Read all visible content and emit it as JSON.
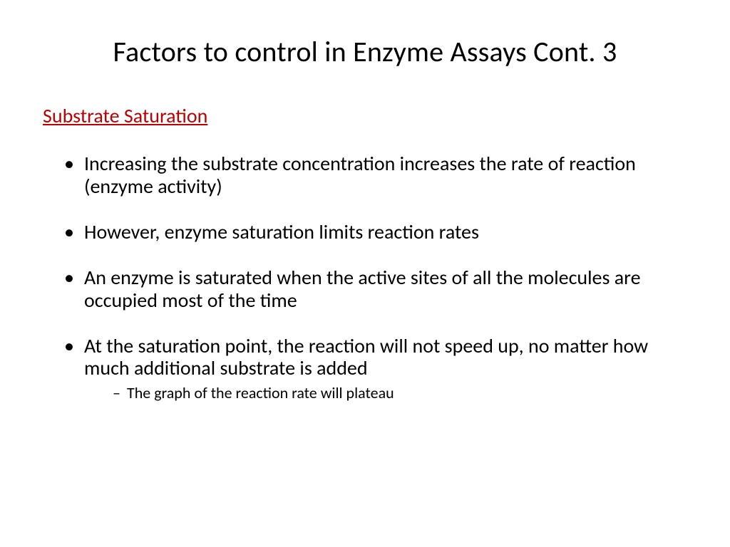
{
  "slide": {
    "title": "Factors to control in Enzyme Assays Cont. 3",
    "subheading": "Substrate Saturation",
    "bullets": [
      {
        "text": "Increasing the substrate concentration increases the rate of reaction (enzyme activity)"
      },
      {
        "text": "However, enzyme saturation limits reaction rates"
      },
      {
        "text": "An enzyme is saturated when the active sites of all the molecules are occupied most of the time"
      },
      {
        "text": "At the saturation point, the reaction will not speed up, no matter how much additional substrate is added",
        "sub": [
          {
            "text": "The graph of the reaction rate will plateau"
          }
        ]
      }
    ],
    "colors": {
      "title": "#000000",
      "subheading": "#c00000",
      "body": "#000000",
      "background": "#ffffff"
    },
    "typography": {
      "title_fontsize": 40,
      "subheading_fontsize": 28,
      "body_fontsize": 28,
      "sub_fontsize": 22,
      "font_family": "Calibri"
    }
  }
}
